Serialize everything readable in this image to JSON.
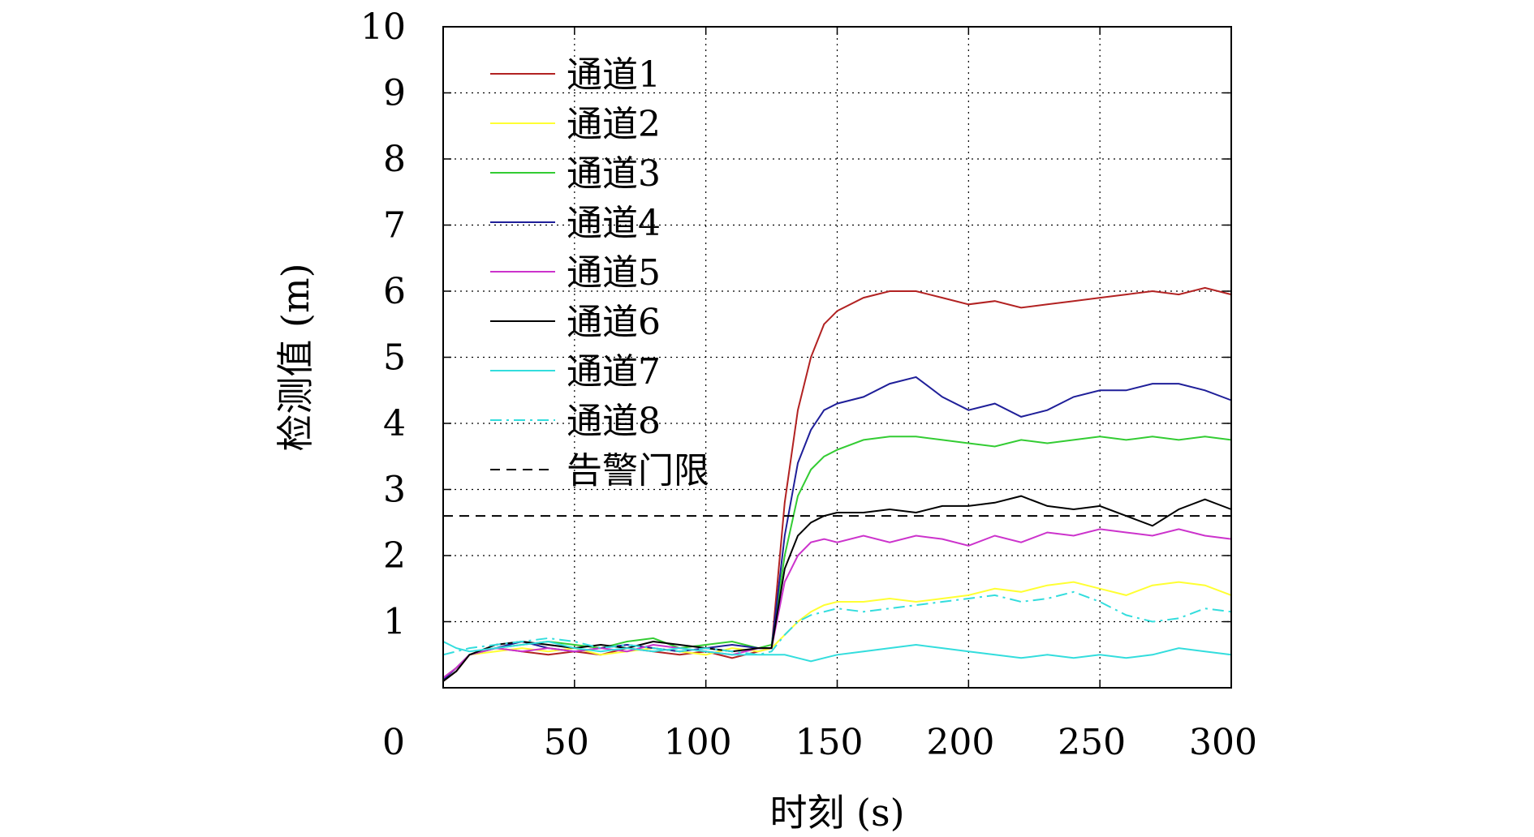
{
  "chart_data": {
    "type": "line",
    "title": "",
    "xlabel": "时刻 (s)",
    "ylabel": "检测值 (m)",
    "xlim": [
      0,
      300
    ],
    "ylim": [
      0,
      10
    ],
    "xticks": [
      50,
      100,
      150,
      200,
      250,
      300
    ],
    "yticks": [
      1,
      2,
      3,
      4,
      5,
      6,
      7,
      8,
      9,
      10
    ],
    "origin_label": "0",
    "grid": true,
    "legend_position": "top-left",
    "series": [
      {
        "name": "通道1",
        "color": "#b22222",
        "x": [
          0,
          5,
          10,
          20,
          30,
          40,
          50,
          60,
          70,
          80,
          90,
          100,
          110,
          120,
          125,
          130,
          135,
          140,
          145,
          150,
          160,
          170,
          180,
          190,
          200,
          210,
          220,
          230,
          240,
          250,
          260,
          270,
          280,
          290,
          300
        ],
        "y": [
          0.1,
          0.25,
          0.5,
          0.6,
          0.55,
          0.5,
          0.55,
          0.5,
          0.6,
          0.55,
          0.5,
          0.55,
          0.45,
          0.55,
          0.6,
          2.8,
          4.2,
          5.0,
          5.5,
          5.7,
          5.9,
          6.0,
          6.0,
          5.9,
          5.8,
          5.85,
          5.75,
          5.8,
          5.85,
          5.9,
          5.95,
          6.0,
          5.95,
          6.05,
          5.95
        ]
      },
      {
        "name": "通道2",
        "color": "#ffff33",
        "x": [
          0,
          5,
          10,
          20,
          30,
          40,
          50,
          60,
          70,
          80,
          90,
          100,
          110,
          120,
          125,
          130,
          135,
          140,
          145,
          150,
          160,
          170,
          180,
          190,
          200,
          210,
          220,
          230,
          240,
          250,
          260,
          270,
          280,
          290,
          300
        ],
        "y": [
          0.15,
          0.3,
          0.5,
          0.55,
          0.6,
          0.55,
          0.6,
          0.5,
          0.55,
          0.6,
          0.55,
          0.5,
          0.6,
          0.55,
          0.6,
          0.8,
          1.0,
          1.15,
          1.25,
          1.3,
          1.3,
          1.35,
          1.3,
          1.35,
          1.4,
          1.5,
          1.45,
          1.55,
          1.6,
          1.5,
          1.4,
          1.55,
          1.6,
          1.55,
          1.4
        ]
      },
      {
        "name": "通道3",
        "color": "#33cc33",
        "x": [
          0,
          5,
          10,
          20,
          30,
          40,
          50,
          60,
          70,
          80,
          90,
          100,
          110,
          120,
          125,
          130,
          135,
          140,
          145,
          150,
          160,
          170,
          180,
          190,
          200,
          210,
          220,
          230,
          240,
          250,
          260,
          270,
          280,
          290,
          300
        ],
        "y": [
          0.15,
          0.3,
          0.5,
          0.6,
          0.65,
          0.7,
          0.65,
          0.6,
          0.7,
          0.75,
          0.6,
          0.65,
          0.7,
          0.6,
          0.65,
          2.0,
          2.9,
          3.3,
          3.5,
          3.6,
          3.75,
          3.8,
          3.8,
          3.75,
          3.7,
          3.65,
          3.75,
          3.7,
          3.75,
          3.8,
          3.75,
          3.8,
          3.75,
          3.8,
          3.75
        ]
      },
      {
        "name": "通道4",
        "color": "#1f1f99",
        "x": [
          0,
          5,
          10,
          20,
          30,
          40,
          50,
          60,
          70,
          80,
          90,
          100,
          110,
          120,
          125,
          130,
          135,
          140,
          145,
          150,
          160,
          170,
          180,
          190,
          200,
          210,
          220,
          230,
          240,
          250,
          260,
          270,
          280,
          290,
          300
        ],
        "y": [
          0.12,
          0.3,
          0.5,
          0.6,
          0.7,
          0.6,
          0.55,
          0.6,
          0.65,
          0.6,
          0.55,
          0.6,
          0.65,
          0.6,
          0.6,
          2.3,
          3.4,
          3.9,
          4.2,
          4.3,
          4.4,
          4.6,
          4.7,
          4.4,
          4.2,
          4.3,
          4.1,
          4.2,
          4.4,
          4.5,
          4.5,
          4.6,
          4.6,
          4.5,
          4.35
        ]
      },
      {
        "name": "通道5",
        "color": "#cc33cc",
        "x": [
          0,
          5,
          10,
          20,
          30,
          40,
          50,
          60,
          70,
          80,
          90,
          100,
          110,
          120,
          125,
          130,
          135,
          140,
          145,
          150,
          160,
          170,
          180,
          190,
          200,
          210,
          220,
          230,
          240,
          250,
          260,
          270,
          280,
          290,
          300
        ],
        "y": [
          0.15,
          0.3,
          0.5,
          0.6,
          0.55,
          0.6,
          0.55,
          0.6,
          0.55,
          0.65,
          0.6,
          0.55,
          0.5,
          0.6,
          0.6,
          1.6,
          2.0,
          2.2,
          2.25,
          2.2,
          2.3,
          2.2,
          2.3,
          2.25,
          2.15,
          2.3,
          2.2,
          2.35,
          2.3,
          2.4,
          2.35,
          2.3,
          2.4,
          2.3,
          2.25
        ]
      },
      {
        "name": "通道6",
        "color": "#000000",
        "x": [
          0,
          5,
          10,
          20,
          30,
          40,
          50,
          60,
          70,
          80,
          90,
          100,
          110,
          120,
          125,
          130,
          135,
          140,
          145,
          150,
          160,
          170,
          180,
          190,
          200,
          210,
          220,
          230,
          240,
          250,
          260,
          270,
          280,
          290,
          300
        ],
        "y": [
          0.1,
          0.25,
          0.5,
          0.65,
          0.7,
          0.65,
          0.6,
          0.65,
          0.6,
          0.7,
          0.65,
          0.6,
          0.55,
          0.6,
          0.6,
          1.8,
          2.3,
          2.5,
          2.6,
          2.65,
          2.65,
          2.7,
          2.65,
          2.75,
          2.75,
          2.8,
          2.9,
          2.75,
          2.7,
          2.75,
          2.6,
          2.45,
          2.7,
          2.85,
          2.7
        ]
      },
      {
        "name": "通道7",
        "color": "#33dddd",
        "x": [
          0,
          5,
          10,
          20,
          30,
          40,
          50,
          60,
          70,
          80,
          90,
          100,
          110,
          120,
          125,
          130,
          135,
          140,
          145,
          150,
          160,
          170,
          180,
          190,
          200,
          210,
          220,
          230,
          240,
          250,
          260,
          270,
          280,
          290,
          300
        ],
        "y": [
          0.7,
          0.6,
          0.55,
          0.6,
          0.65,
          0.7,
          0.6,
          0.55,
          0.6,
          0.55,
          0.6,
          0.55,
          0.5,
          0.5,
          0.5,
          0.5,
          0.45,
          0.4,
          0.45,
          0.5,
          0.55,
          0.6,
          0.65,
          0.6,
          0.55,
          0.5,
          0.45,
          0.5,
          0.45,
          0.5,
          0.45,
          0.5,
          0.6,
          0.55,
          0.5
        ]
      },
      {
        "name": "通道8",
        "color": "#33dddd",
        "dash": "14 6 3 6",
        "x": [
          0,
          5,
          10,
          20,
          30,
          40,
          50,
          60,
          70,
          80,
          90,
          100,
          110,
          120,
          125,
          130,
          135,
          140,
          145,
          150,
          160,
          170,
          180,
          190,
          200,
          210,
          220,
          230,
          240,
          250,
          260,
          270,
          280,
          290,
          300
        ],
        "y": [
          0.5,
          0.55,
          0.6,
          0.65,
          0.7,
          0.75,
          0.7,
          0.6,
          0.65,
          0.6,
          0.55,
          0.6,
          0.55,
          0.5,
          0.55,
          0.8,
          1.0,
          1.1,
          1.15,
          1.2,
          1.15,
          1.2,
          1.25,
          1.3,
          1.35,
          1.4,
          1.3,
          1.35,
          1.45,
          1.3,
          1.1,
          1.0,
          1.05,
          1.2,
          1.15
        ]
      },
      {
        "name": "告警门限",
        "color": "#000000",
        "dash": "12 8",
        "x": [
          0,
          300
        ],
        "y": [
          2.6,
          2.6
        ]
      }
    ]
  }
}
